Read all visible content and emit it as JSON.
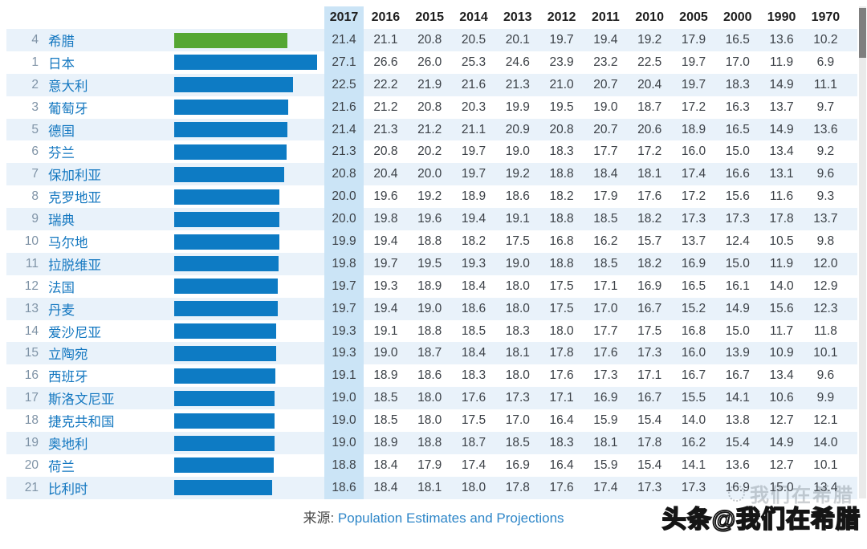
{
  "chart_data": {
    "type": "table",
    "note": "horizontal bar per country for 2017 value; Greece highlighted green",
    "year_columns": [
      "2017",
      "2016",
      "2015",
      "2014",
      "2013",
      "2012",
      "2011",
      "2010",
      "2005",
      "2000",
      "1990",
      "1970"
    ],
    "bar_axis_max": 27.1,
    "rows": [
      {
        "rank": "4",
        "country": "希腊",
        "highlight": true,
        "values": [
          21.4,
          21.1,
          20.8,
          20.5,
          20.1,
          19.7,
          19.4,
          19.2,
          17.9,
          16.5,
          13.6,
          10.2
        ]
      },
      {
        "rank": "1",
        "country": "日本",
        "highlight": false,
        "values": [
          27.1,
          26.6,
          26.0,
          25.3,
          24.6,
          23.9,
          23.2,
          22.5,
          19.7,
          17.0,
          11.9,
          6.9
        ]
      },
      {
        "rank": "2",
        "country": "意大利",
        "highlight": false,
        "values": [
          22.5,
          22.2,
          21.9,
          21.6,
          21.3,
          21.0,
          20.7,
          20.4,
          19.7,
          18.3,
          14.9,
          11.1
        ]
      },
      {
        "rank": "3",
        "country": "葡萄牙",
        "highlight": false,
        "values": [
          21.6,
          21.2,
          20.8,
          20.3,
          19.9,
          19.5,
          19.0,
          18.7,
          17.2,
          16.3,
          13.7,
          9.7
        ]
      },
      {
        "rank": "5",
        "country": "德国",
        "highlight": false,
        "values": [
          21.4,
          21.3,
          21.2,
          21.1,
          20.9,
          20.8,
          20.7,
          20.6,
          18.9,
          16.5,
          14.9,
          13.6
        ]
      },
      {
        "rank": "6",
        "country": "芬兰",
        "highlight": false,
        "values": [
          21.3,
          20.8,
          20.2,
          19.7,
          19.0,
          18.3,
          17.7,
          17.2,
          16.0,
          15.0,
          13.4,
          9.2
        ]
      },
      {
        "rank": "7",
        "country": "保加利亚",
        "highlight": false,
        "values": [
          20.8,
          20.4,
          20.0,
          19.7,
          19.2,
          18.8,
          18.4,
          18.1,
          17.4,
          16.6,
          13.1,
          9.6
        ]
      },
      {
        "rank": "8",
        "country": "克罗地亚",
        "highlight": false,
        "values": [
          20.0,
          19.6,
          19.2,
          18.9,
          18.6,
          18.2,
          17.9,
          17.6,
          17.2,
          15.6,
          11.6,
          9.3
        ]
      },
      {
        "rank": "9",
        "country": "瑞典",
        "highlight": false,
        "values": [
          20.0,
          19.8,
          19.6,
          19.4,
          19.1,
          18.8,
          18.5,
          18.2,
          17.3,
          17.3,
          17.8,
          13.7
        ]
      },
      {
        "rank": "10",
        "country": "马尔地",
        "highlight": false,
        "values": [
          19.9,
          19.4,
          18.8,
          18.2,
          17.5,
          16.8,
          16.2,
          15.7,
          13.7,
          12.4,
          10.5,
          9.8
        ]
      },
      {
        "rank": "11",
        "country": "拉脱维亚",
        "highlight": false,
        "values": [
          19.8,
          19.7,
          19.5,
          19.3,
          19.0,
          18.8,
          18.5,
          18.2,
          16.9,
          15.0,
          11.9,
          12.0
        ]
      },
      {
        "rank": "12",
        "country": "法国",
        "highlight": false,
        "values": [
          19.7,
          19.3,
          18.9,
          18.4,
          18.0,
          17.5,
          17.1,
          16.9,
          16.5,
          16.1,
          14.0,
          12.9
        ]
      },
      {
        "rank": "13",
        "country": "丹麦",
        "highlight": false,
        "values": [
          19.7,
          19.4,
          19.0,
          18.6,
          18.0,
          17.5,
          17.0,
          16.7,
          15.2,
          14.9,
          15.6,
          12.3
        ]
      },
      {
        "rank": "14",
        "country": "爱沙尼亚",
        "highlight": false,
        "values": [
          19.3,
          19.1,
          18.8,
          18.5,
          18.3,
          18.0,
          17.7,
          17.5,
          16.8,
          15.0,
          11.7,
          11.8
        ]
      },
      {
        "rank": "15",
        "country": "立陶宛",
        "highlight": false,
        "values": [
          19.3,
          19.0,
          18.7,
          18.4,
          18.1,
          17.8,
          17.6,
          17.3,
          16.0,
          13.9,
          10.9,
          10.1
        ]
      },
      {
        "rank": "16",
        "country": "西班牙",
        "highlight": false,
        "values": [
          19.1,
          18.9,
          18.6,
          18.3,
          18.0,
          17.6,
          17.3,
          17.1,
          16.7,
          16.7,
          13.4,
          9.6
        ]
      },
      {
        "rank": "17",
        "country": "斯洛文尼亚",
        "highlight": false,
        "values": [
          19.0,
          18.5,
          18.0,
          17.6,
          17.3,
          17.1,
          16.9,
          16.7,
          15.5,
          14.1,
          10.6,
          9.9
        ]
      },
      {
        "rank": "18",
        "country": "捷克共和国",
        "highlight": false,
        "values": [
          19.0,
          18.5,
          18.0,
          17.5,
          17.0,
          16.4,
          15.9,
          15.4,
          14.0,
          13.8,
          12.7,
          12.1
        ]
      },
      {
        "rank": "19",
        "country": "奥地利",
        "highlight": false,
        "values": [
          19.0,
          18.9,
          18.8,
          18.7,
          18.5,
          18.3,
          18.1,
          17.8,
          16.2,
          15.4,
          14.9,
          14.0
        ]
      },
      {
        "rank": "20",
        "country": "荷兰",
        "highlight": false,
        "values": [
          18.8,
          18.4,
          17.9,
          17.4,
          16.9,
          16.4,
          15.9,
          15.4,
          14.1,
          13.6,
          12.7,
          10.1
        ]
      },
      {
        "rank": "21",
        "country": "比利时",
        "highlight": false,
        "values": [
          18.6,
          18.4,
          18.1,
          18.0,
          17.8,
          17.6,
          17.4,
          17.3,
          17.3,
          16.9,
          15.0,
          13.4
        ]
      }
    ]
  },
  "footer": {
    "source_label": "来源:",
    "source_link": "Population Estimates and Projections"
  },
  "watermark": {
    "faint_text": "我们在希腊",
    "bold_text": "头条@我们在希腊"
  },
  "colors": {
    "bar_blue": "#0d7bc4",
    "bar_green": "#55a733",
    "row_stripe": "#e9f2fa",
    "column_2017_highlight": "#cbe4f6",
    "country_text": "#1377c0",
    "rank_text": "#7f93a6",
    "value_text": "#3b4046",
    "year_header_text": "#1e1e1e",
    "source_link_text": "#2e86c8"
  }
}
